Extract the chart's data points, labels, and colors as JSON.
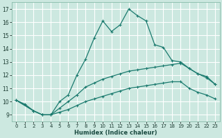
{
  "xlabel": "Humidex (Indice chaleur)",
  "xlim": [
    -0.5,
    23.5
  ],
  "ylim": [
    8.5,
    17.5
  ],
  "xticks": [
    0,
    1,
    2,
    3,
    4,
    5,
    6,
    7,
    8,
    9,
    10,
    11,
    12,
    13,
    14,
    15,
    16,
    17,
    18,
    19,
    20,
    21,
    22,
    23
  ],
  "yticks": [
    9,
    10,
    11,
    12,
    13,
    14,
    15,
    16,
    17
  ],
  "bg_color": "#cce8e0",
  "grid_color": "#ffffff",
  "line_color": "#1a7a6e",
  "line1_x": [
    0,
    1,
    2,
    3,
    4,
    5,
    6,
    7,
    8,
    9,
    10,
    11,
    12,
    13,
    14,
    15,
    16,
    17,
    18,
    19,
    20,
    21,
    22,
    23
  ],
  "line1_y": [
    10.1,
    9.8,
    9.3,
    9.0,
    9.0,
    10.0,
    10.5,
    12.0,
    13.2,
    14.8,
    16.1,
    15.3,
    15.8,
    17.0,
    16.5,
    16.1,
    14.3,
    14.1,
    13.1,
    13.0,
    12.5,
    12.1,
    11.9,
    11.3
  ],
  "line2_x": [
    0,
    2,
    3,
    4,
    5,
    6,
    7,
    8,
    9,
    10,
    11,
    12,
    13,
    14,
    15,
    16,
    17,
    18,
    19,
    20,
    21,
    22,
    23
  ],
  "line2_y": [
    10.1,
    9.3,
    9.0,
    9.0,
    9.5,
    10.0,
    10.5,
    11.1,
    11.4,
    11.7,
    11.9,
    12.1,
    12.3,
    12.4,
    12.5,
    12.6,
    12.7,
    12.8,
    12.9,
    12.5,
    12.1,
    11.8,
    11.3
  ],
  "line3_x": [
    0,
    2,
    3,
    4,
    5,
    6,
    7,
    8,
    9,
    10,
    11,
    12,
    13,
    14,
    15,
    16,
    17,
    18,
    19,
    20,
    21,
    22,
    23
  ],
  "line3_y": [
    10.1,
    9.3,
    9.0,
    9.0,
    9.2,
    9.4,
    9.7,
    10.0,
    10.2,
    10.4,
    10.6,
    10.8,
    11.0,
    11.1,
    11.2,
    11.3,
    11.4,
    11.5,
    11.5,
    11.0,
    10.7,
    10.5,
    10.2
  ]
}
